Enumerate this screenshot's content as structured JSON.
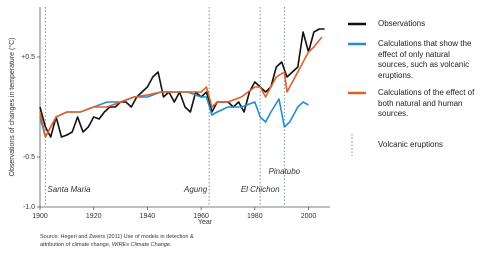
{
  "chart_data": {
    "type": "line",
    "y_label": "Observations of changes in temperature (°C)",
    "x_label": "Year",
    "xlim": [
      1900,
      2008
    ],
    "xticks": [
      1900,
      1920,
      1940,
      1960,
      1980,
      2000
    ],
    "ylim": [
      -1.0,
      1.0
    ],
    "yticks": [
      {
        "value": -1.0,
        "label": "-1.0"
      },
      {
        "value": -0.5,
        "label": "-0.5"
      },
      {
        "value": 0.5,
        "label": "+0.5"
      }
    ],
    "series": [
      {
        "name": "Observations",
        "color": "#111111",
        "x": [
          1900,
          1902,
          1904,
          1906,
          1908,
          1910,
          1912,
          1914,
          1916,
          1918,
          1920,
          1922,
          1924,
          1926,
          1928,
          1930,
          1932,
          1934,
          1936,
          1938,
          1940,
          1942,
          1944,
          1946,
          1948,
          1950,
          1952,
          1954,
          1956,
          1958,
          1960,
          1962,
          1964,
          1966,
          1968,
          1970,
          1972,
          1974,
          1976,
          1978,
          1980,
          1982,
          1984,
          1986,
          1988,
          1990,
          1992,
          1994,
          1996,
          1998,
          2000,
          2002,
          2004,
          2006
        ],
        "values": [
          0.0,
          -0.2,
          -0.3,
          -0.1,
          -0.3,
          -0.28,
          -0.25,
          -0.1,
          -0.25,
          -0.2,
          -0.1,
          -0.12,
          -0.05,
          0.0,
          0.0,
          0.05,
          0.05,
          0.0,
          0.1,
          0.15,
          0.2,
          0.3,
          0.35,
          0.1,
          0.15,
          0.05,
          0.15,
          0.0,
          -0.05,
          0.15,
          0.1,
          0.15,
          -0.05,
          0.05,
          0.05,
          0.05,
          0.0,
          0.05,
          -0.05,
          0.15,
          0.25,
          0.2,
          0.15,
          0.2,
          0.4,
          0.45,
          0.3,
          0.35,
          0.4,
          0.75,
          0.55,
          0.75,
          0.78,
          0.78
        ]
      },
      {
        "name": "Calculations that show the effect of only natural sources, such as volcanic eruptions.",
        "color": "#1f8fd0",
        "x": [
          1900,
          1902,
          1904,
          1906,
          1910,
          1915,
          1920,
          1925,
          1930,
          1935,
          1940,
          1945,
          1950,
          1955,
          1960,
          1962,
          1964,
          1966,
          1970,
          1975,
          1980,
          1982,
          1984,
          1986,
          1989,
          1991,
          1993,
          1996,
          1998,
          2000
        ],
        "values": [
          -0.1,
          -0.3,
          -0.2,
          -0.1,
          -0.05,
          -0.05,
          0.0,
          0.05,
          0.05,
          0.1,
          0.1,
          0.15,
          0.15,
          0.15,
          0.1,
          0.1,
          -0.08,
          -0.05,
          0.0,
          0.0,
          0.05,
          -0.1,
          -0.15,
          -0.05,
          0.08,
          -0.2,
          -0.15,
          0.0,
          0.05,
          0.02
        ]
      },
      {
        "name": "Calculations of the effect of both natural and human sources.",
        "color": "#e0602a",
        "x": [
          1900,
          1902,
          1904,
          1906,
          1910,
          1915,
          1920,
          1925,
          1930,
          1935,
          1940,
          1945,
          1950,
          1955,
          1960,
          1962,
          1964,
          1966,
          1970,
          1975,
          1980,
          1982,
          1984,
          1986,
          1988,
          1991,
          1992,
          1994,
          1996,
          1998,
          2000,
          2002,
          2005
        ],
        "values": [
          -0.05,
          -0.3,
          -0.2,
          -0.1,
          -0.05,
          -0.05,
          0.0,
          0.0,
          0.05,
          0.1,
          0.12,
          0.15,
          0.15,
          0.15,
          0.15,
          0.2,
          0.0,
          0.05,
          0.05,
          0.1,
          0.2,
          0.2,
          0.1,
          0.2,
          0.3,
          0.35,
          0.15,
          0.25,
          0.35,
          0.45,
          0.55,
          0.6,
          0.7
        ]
      }
    ],
    "volcano_legend": "Volcanic eruptions",
    "volcanoes": [
      {
        "label": "Santa Maria",
        "x": 1902
      },
      {
        "label": "Agung",
        "x": 1963
      },
      {
        "label": "El Chichon",
        "x": 1982
      },
      {
        "label": "Pinatubo",
        "x": 1991
      }
    ],
    "source": [
      "Source: Hegerl and Zweirs (2011) Use of models in detection &",
      "attribution of climate change, ",
      "WIREs Climate Change",
      "."
    ]
  }
}
